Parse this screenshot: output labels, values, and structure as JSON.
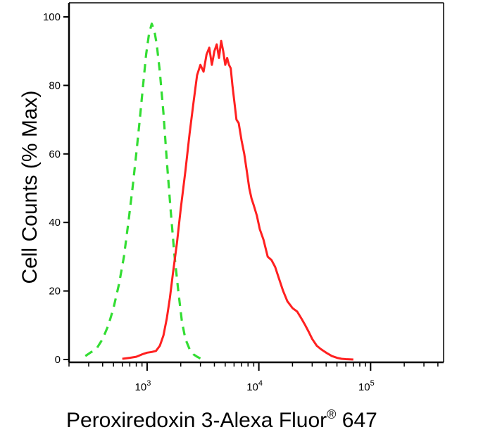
{
  "chart_data": {
    "type": "line",
    "title": "",
    "xlabel_main": "Peroxiredoxin 3-Alexa Fluor",
    "xlabel_sup": "®",
    "xlabel_tail": " 647",
    "ylabel": "Cell Counts (% Max)",
    "x_scale": "log",
    "xlim": [
      200,
      450000
    ],
    "ylim": [
      0,
      100
    ],
    "y_ticks": [
      {
        "value": 0,
        "label": "0"
      },
      {
        "value": 20,
        "label": "20"
      },
      {
        "value": 40,
        "label": "40"
      },
      {
        "value": 60,
        "label": "60"
      },
      {
        "value": 80,
        "label": "80"
      },
      {
        "value": 100,
        "label": "100"
      }
    ],
    "x_ticks": [
      {
        "value": 1000,
        "base": "10",
        "exp": "3"
      },
      {
        "value": 10000,
        "base": "10",
        "exp": "4"
      },
      {
        "value": 100000,
        "base": "10",
        "exp": "5"
      }
    ],
    "grid": false,
    "series": [
      {
        "color": "#33dd33",
        "dash": "dashed",
        "x": [
          280,
          310,
          350,
          400,
          450,
          500,
          560,
          620,
          680,
          740,
          800,
          860,
          920,
          980,
          1040,
          1100,
          1160,
          1220,
          1300,
          1400,
          1500,
          1620,
          1750,
          1900,
          2050,
          2200,
          2400,
          2600,
          2800,
          3000
        ],
        "y": [
          1,
          2,
          3,
          6,
          10,
          15,
          22,
          30,
          40,
          50,
          60,
          70,
          80,
          89,
          95,
          98,
          96,
          92,
          84,
          72,
          58,
          44,
          31,
          20,
          11,
          6,
          3,
          1.5,
          0.8,
          0.3
        ]
      },
      {
        "color": "#ff2020",
        "dash": "solid",
        "x": [
          600,
          700,
          800,
          900,
          1000,
          1100,
          1200,
          1300,
          1400,
          1500,
          1600,
          1700,
          1850,
          2000,
          2200,
          2400,
          2600,
          2800,
          3000,
          3200,
          3400,
          3600,
          3800,
          4000,
          4200,
          4400,
          4600,
          4800,
          5000,
          5200,
          5400,
          5600,
          5800,
          6000,
          6300,
          6600,
          7000,
          7400,
          7800,
          8200,
          8600,
          9000,
          9600,
          10200,
          11000,
          12000,
          13000,
          14000,
          15000,
          16500,
          18000,
          20000,
          22000,
          24000,
          26000,
          28000,
          30000,
          33000,
          36000,
          40000,
          45000,
          50000,
          55000,
          60000,
          70000
        ],
        "y": [
          0.2,
          0.5,
          0.8,
          1.5,
          2,
          2.2,
          2.5,
          4,
          7,
          12,
          18,
          25,
          34,
          44,
          55,
          66,
          75,
          83,
          86,
          84,
          89,
          91,
          86,
          90,
          92,
          88,
          93,
          90,
          86,
          88,
          86,
          85,
          80,
          76,
          70,
          69,
          64,
          60,
          55,
          50,
          47,
          45,
          42,
          38,
          35,
          30,
          29,
          27,
          24,
          20,
          17,
          15,
          14,
          12,
          10,
          8,
          6,
          4,
          3,
          2,
          1,
          0.5,
          0.2,
          0.1,
          0
        ]
      }
    ]
  }
}
